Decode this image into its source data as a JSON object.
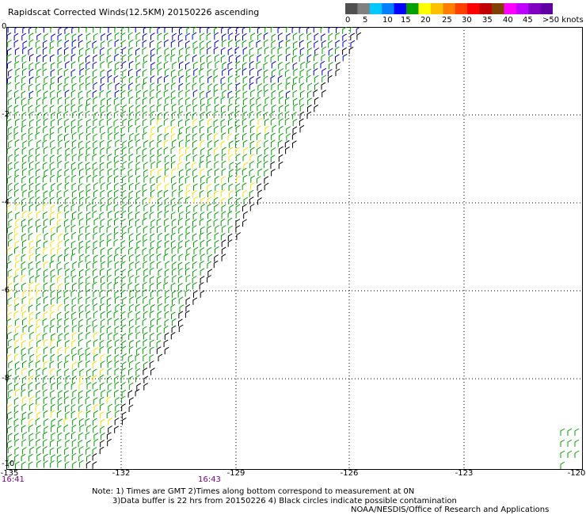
{
  "title": "Rapidscat Corrected Winds(12.5KM) 20150226 ascending",
  "legend": {
    "labels": [
      "0",
      "5",
      "10",
      "15",
      "20",
      "25",
      "30",
      "35",
      "40",
      "45",
      ">50 knots"
    ],
    "colors": [
      "#505050",
      "#808080",
      "#00c8ff",
      "#0080ff",
      "#0000ff",
      "#00a000",
      "#ffff00",
      "#ffc000",
      "#ff8000",
      "#ff4000",
      "#ff0000",
      "#c00000",
      "#804000",
      "#ff00ff",
      "#c000ff",
      "#8000c0",
      "#6000a0"
    ]
  },
  "axes": {
    "y_labels": [
      "0",
      "-2",
      "-4",
      "-6",
      "-8",
      "-10"
    ],
    "x_labels": [
      "-135",
      "-132",
      "-129",
      "-126",
      "-123",
      "-120"
    ],
    "time_labels": [
      "16:41",
      "16:43"
    ]
  },
  "notes": {
    "line1": "Note: 1) Times are GMT 2)Times along bottom correspond to measurement at 0N",
    "line2": "3)Data buffer is 22 hrs from 20150226 4) Black circles indicate possible contamination",
    "line3": "NOAA/NESDIS/Office of Research and Applications"
  }
}
